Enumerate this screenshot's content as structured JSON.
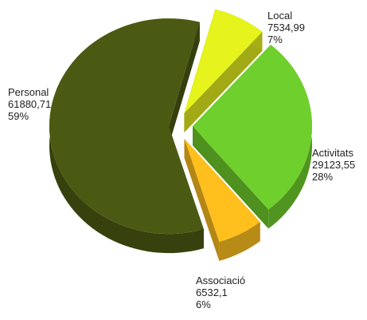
{
  "chart_data": {
    "type": "pie",
    "categories": [
      "Local",
      "Activitats",
      "Associació",
      "Personal"
    ],
    "values": [
      7534.99,
      29123.55,
      6532.1,
      61880.71
    ],
    "value_labels": [
      "7534,99",
      "29123,55",
      "6532,1",
      "61880,71"
    ],
    "percent_labels": [
      "7%",
      "28%",
      "6%",
      "59%"
    ],
    "colors": [
      "#e6f31c",
      "#6fcf2c",
      "#ffc01e",
      "#4b5a12"
    ]
  }
}
